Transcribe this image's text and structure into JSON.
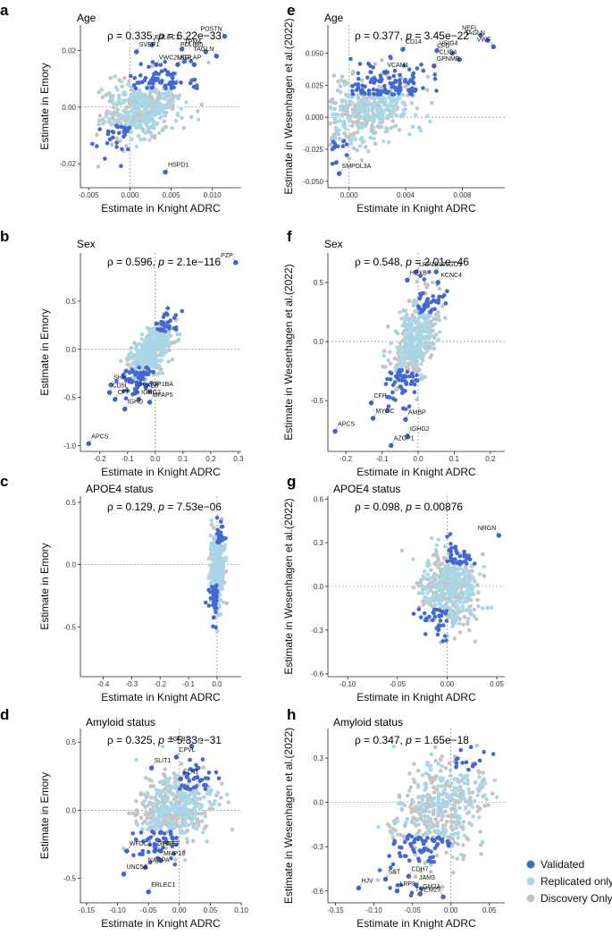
{
  "legend": [
    {
      "name": "Validated",
      "color": "#4169d4"
    },
    {
      "name": "Replicated only",
      "color": "#a8d8e8"
    },
    {
      "name": "Discovery Only",
      "color": "#c4c4c4"
    }
  ],
  "chart_data": [
    {
      "panel": "a",
      "type": "scatter",
      "title": "Age",
      "rho": "0.335",
      "p": "6.22e−33",
      "xlabel": "Estimate in Knight ADRC",
      "ylabel": "Estimate in Emory",
      "xlim": [
        -0.006,
        0.0135
      ],
      "ylim": [
        -0.0285,
        0.029
      ],
      "xticks": [
        -0.005,
        0.0,
        0.005,
        0.01
      ],
      "xtick_labels": [
        "-0.005",
        "0.000",
        "0.005",
        "0.010"
      ],
      "yticks": [
        -0.02,
        0.0,
        0.02
      ],
      "ytick_labels": [
        "-0.02",
        "0.00",
        "0.02"
      ],
      "cloud": {
        "sx": 0.0025,
        "sy": 0.006,
        "rho": 0.4,
        "dx": 0.0015,
        "dy": 0.0
      },
      "genes": [
        {
          "name": "POSTN",
          "x": 0.0115,
          "y": 0.025
        },
        {
          "name": "ERLEC1",
          "x": 0.0027,
          "y": 0.022
        },
        {
          "name": "TPM4",
          "x": 0.0063,
          "y": 0.0205
        },
        {
          "name": "SVEP1",
          "x": 0.0008,
          "y": 0.0195
        },
        {
          "name": "PDLIM5",
          "x": 0.0092,
          "y": 0.0195
        },
        {
          "name": "VWC2L",
          "x": 0.0032,
          "y": 0.015
        },
        {
          "name": "BGLAP",
          "x": 0.0058,
          "y": 0.015
        },
        {
          "name": "MGP",
          "x": 0.0078,
          "y": 0.015
        },
        {
          "name": "TAGLN",
          "x": 0.0105,
          "y": 0.018
        },
        {
          "name": "HSPD1",
          "x": 0.0043,
          "y": -0.023
        }
      ]
    },
    {
      "panel": "b",
      "type": "scatter",
      "title": "Sex",
      "rho": "0.596",
      "p": "2.1e−116",
      "xlabel": "Estimate in Knight ADRC",
      "ylabel": "Estimate in Emory",
      "xlim": [
        -0.27,
        0.31
      ],
      "ylim": [
        -1.06,
        1.0
      ],
      "xticks": [
        -0.2,
        -0.1,
        0.0,
        0.1,
        0.2,
        0.3
      ],
      "xtick_labels": [
        "-0.2",
        "-0.1",
        "0.0",
        "0.1",
        "0.2",
        "0.3"
      ],
      "yticks": [
        -1.0,
        -0.5,
        0.0,
        0.5
      ],
      "ytick_labels": [
        "-1.0",
        "-0.5",
        "0.0",
        "0.5"
      ],
      "cloud": {
        "sx": 0.04,
        "sy": 0.17,
        "rho": 0.65,
        "dx": -0.02,
        "dy": -0.05
      },
      "genes": [
        {
          "name": "PZP",
          "x": 0.29,
          "y": 0.9
        },
        {
          "name": "SHH",
          "x": -0.16,
          "y": -0.37
        },
        {
          "name": "PVALB",
          "x": -0.07,
          "y": -0.45
        },
        {
          "name": "GP1BA",
          "x": -0.02,
          "y": -0.44
        },
        {
          "name": "CD5L",
          "x": -0.165,
          "y": -0.45
        },
        {
          "name": "CFP",
          "x": -0.145,
          "y": -0.52
        },
        {
          "name": "IGHG2",
          "x": -0.06,
          "y": -0.52
        },
        {
          "name": "MFAP5",
          "x": -0.02,
          "y": -0.55
        },
        {
          "name": "IGHD",
          "x": -0.11,
          "y": -0.62
        },
        {
          "name": "APCS",
          "x": -0.24,
          "y": -0.98
        }
      ]
    },
    {
      "panel": "c",
      "type": "scatter",
      "title": "APOE4 status",
      "rho": "0.129",
      "p": "7.53e−06",
      "xlabel": "Estimate in Knight ADRC",
      "ylabel": "Estimate in Emory",
      "xlim": [
        -0.48,
        0.085
      ],
      "ylim": [
        -0.9,
        0.55
      ],
      "xticks": [
        -0.4,
        -0.3,
        -0.2,
        -0.1,
        0.0
      ],
      "xtick_labels": [
        "-0.4",
        "-0.3",
        "-0.2",
        "-0.1",
        "0.0"
      ],
      "yticks": [
        -0.5,
        0.0,
        0.5
      ],
      "ytick_labels": [
        "-0.5",
        "0.0",
        "0.5"
      ],
      "cloud": {
        "sx": 0.012,
        "sy": 0.15,
        "rho": 0.1,
        "dx": 0.0,
        "dy": -0.03
      },
      "genes": []
    },
    {
      "panel": "d",
      "type": "scatter",
      "title": "Amyloid status",
      "rho": "0.325",
      "p": "5.33e−31",
      "xlabel": "Estimate in Knight ADRC",
      "ylabel": "Estimate in Emory",
      "xlim": [
        -0.16,
        0.1
      ],
      "ylim": [
        -0.68,
        0.6
      ],
      "xticks": [
        -0.15,
        -0.1,
        -0.05,
        0.0,
        0.05,
        0.1
      ],
      "xtick_labels": [
        "-0.15",
        "-0.10",
        "-0.05",
        "0.00",
        "0.05",
        "0.10"
      ],
      "yticks": [
        -0.5,
        0.0,
        0.5
      ],
      "ytick_labels": [
        "-0.5",
        "0.0",
        "0.5"
      ],
      "cloud": {
        "sx": 0.03,
        "sy": 0.14,
        "rho": 0.35,
        "dx": -0.01,
        "dy": 0.0
      },
      "genes": [
        {
          "name": "TGFB2",
          "x": 0.02,
          "y": 0.47
        },
        {
          "name": "CPVL",
          "x": -0.005,
          "y": 0.39
        },
        {
          "name": "SLIT1",
          "x": -0.045,
          "y": 0.31
        },
        {
          "name": "FLN1",
          "x": 0.002,
          "y": 0.23
        },
        {
          "name": "WFDC1",
          "x": -0.085,
          "y": -0.3
        },
        {
          "name": "GFAP",
          "x": -0.04,
          "y": -0.3
        },
        {
          "name": "NFE2",
          "x": -0.03,
          "y": -0.3
        },
        {
          "name": "MMP18",
          "x": -0.03,
          "y": -0.37
        },
        {
          "name": "NAGPA",
          "x": -0.055,
          "y": -0.42
        },
        {
          "name": "UNC5A",
          "x": -0.09,
          "y": -0.47
        },
        {
          "name": "ERLEC1",
          "x": -0.05,
          "y": -0.6
        }
      ]
    },
    {
      "panel": "e",
      "type": "scatter",
      "title": "Age",
      "rho": "0.377",
      "p": "3.45e−22",
      "xlabel": "Estimate in Knight ADRC",
      "ylabel": "Estimate in Wesenhagen et al.(2022)",
      "xlim": [
        -0.0015,
        0.011
      ],
      "ylim": [
        -0.055,
        0.072
      ],
      "xticks": [
        0.0,
        0.004,
        0.008
      ],
      "xtick_labels": [
        "0.000",
        "0.004",
        "0.008"
      ],
      "yticks": [
        -0.05,
        -0.025,
        0.0,
        0.025,
        0.05
      ],
      "ytick_labels": [
        "-0.050",
        "-0.025",
        "0.000",
        "0.025",
        "0.050"
      ],
      "cloud": {
        "sx": 0.0018,
        "sy": 0.016,
        "rho": 0.45,
        "dx": 0.0015,
        "dy": 0.008
      },
      "genes": [
        {
          "name": "NEFL",
          "x": 0.0093,
          "y": 0.064
        },
        {
          "name": "TAGLN",
          "x": 0.0098,
          "y": 0.06
        },
        {
          "name": "VWF",
          "x": 0.0102,
          "y": 0.055
        },
        {
          "name": "CD14",
          "x": 0.0038,
          "y": 0.053
        },
        {
          "name": "VSIG4",
          "x": 0.0062,
          "y": 0.052
        },
        {
          "name": "CFD",
          "x": 0.0073,
          "y": 0.05
        },
        {
          "name": "CLIC4",
          "x": 0.0078,
          "y": 0.045
        },
        {
          "name": "VCAM1",
          "x": 0.0025,
          "y": 0.035
        },
        {
          "name": "GPNMB",
          "x": 0.006,
          "y": 0.04
        },
        {
          "name": "SMPDL3A",
          "x": -0.0007,
          "y": -0.044
        }
      ]
    },
    {
      "panel": "f",
      "type": "scatter",
      "title": "Sex",
      "rho": "0.548",
      "p": "2.01e−46",
      "xlabel": "Estimate in Knight ADRC",
      "ylabel": "Estimate in Wesenhagen et al.(2022)",
      "xlim": [
        -0.25,
        0.24
      ],
      "ylim": [
        -0.93,
        0.75
      ],
      "xticks": [
        -0.2,
        -0.1,
        0.0,
        0.1,
        0.2
      ],
      "xtick_labels": [
        "-0.2",
        "-0.1",
        "0.0",
        "0.1",
        "0.2"
      ],
      "yticks": [
        -0.5,
        0.0,
        0.5
      ],
      "ytick_labels": [
        "-0.5",
        "0.0",
        "0.5"
      ],
      "cloud": {
        "sx": 0.035,
        "sy": 0.22,
        "rho": 0.6,
        "dx": -0.01,
        "dy": 0.0
      },
      "genes": [
        {
          "name": "LRP1B",
          "x": -0.005,
          "y": 0.59
        },
        {
          "name": "LINGO1",
          "x": 0.05,
          "y": 0.59
        },
        {
          "name": "HEXB",
          "x": -0.03,
          "y": 0.52
        },
        {
          "name": "KCNC4",
          "x": 0.055,
          "y": 0.5
        },
        {
          "name": "CFP",
          "x": -0.13,
          "y": -0.52
        },
        {
          "name": "AMBP",
          "x": -0.035,
          "y": -0.66
        },
        {
          "name": "MYOC",
          "x": -0.125,
          "y": -0.65
        },
        {
          "name": "APCS",
          "x": -0.23,
          "y": -0.76
        },
        {
          "name": "IGHG2",
          "x": -0.03,
          "y": -0.8
        },
        {
          "name": "AZGP1",
          "x": -0.075,
          "y": -0.88
        }
      ]
    },
    {
      "panel": "g",
      "type": "scatter",
      "title": "APOE4 status",
      "rho": "0.098",
      "p": "0.00876",
      "xlabel": "Estimate in Knight ADRC",
      "ylabel": "Estimate in Wesenhagen et al.(2022)",
      "xlim": [
        -0.12,
        0.058
      ],
      "ylim": [
        -0.62,
        0.62
      ],
      "xticks": [
        -0.1,
        -0.05,
        0.0,
        0.05
      ],
      "xtick_labels": [
        "-0.10",
        "-0.05",
        "0.00",
        "0.05"
      ],
      "yticks": [
        -0.6,
        -0.3,
        0.0,
        0.3,
        0.6
      ],
      "ytick_labels": [
        "-0.6",
        "-0.3",
        "0.0",
        "0.3",
        "0.6"
      ],
      "cloud": {
        "sx": 0.014,
        "sy": 0.14,
        "rho": 0.1,
        "dx": 0.002,
        "dy": 0.0
      },
      "genes": [
        {
          "name": "NRGN",
          "x": 0.052,
          "y": 0.35
        }
      ]
    },
    {
      "panel": "h",
      "type": "scatter",
      "title": "Amyloid status",
      "rho": "0.347",
      "p": "1.65e−18",
      "xlabel": "Estimate in Knight ADRC",
      "ylabel": "Estimate in Wesenhagen et al.(2022)",
      "xlim": [
        -0.16,
        0.07
      ],
      "ylim": [
        -0.68,
        0.5
      ],
      "xticks": [
        -0.15,
        -0.1,
        -0.05,
        0.0,
        0.05
      ],
      "xtick_labels": [
        "-0.15",
        "-0.10",
        "-0.05",
        "0.00",
        "0.05"
      ],
      "yticks": [
        -0.6,
        -0.3,
        0.0,
        0.3
      ],
      "ytick_labels": [
        "-0.6",
        "-0.3",
        "0.0",
        "0.3"
      ],
      "cloud": {
        "sx": 0.03,
        "sy": 0.2,
        "rho": 0.45,
        "dx": -0.015,
        "dy": -0.08
      },
      "genes": [
        {
          "name": "CDH7",
          "x": -0.055,
          "y": -0.5
        },
        {
          "name": "SST",
          "x": -0.085,
          "y": -0.52
        },
        {
          "name": "JAM3",
          "x": -0.045,
          "y": -0.56
        },
        {
          "name": "HJV",
          "x": -0.12,
          "y": -0.58
        },
        {
          "name": "LRP8",
          "x": -0.07,
          "y": -0.6
        },
        {
          "name": "GM2A",
          "x": -0.04,
          "y": -0.62
        },
        {
          "name": "TMEM25",
          "x": -0.01,
          "y": -0.64
        }
      ]
    }
  ]
}
